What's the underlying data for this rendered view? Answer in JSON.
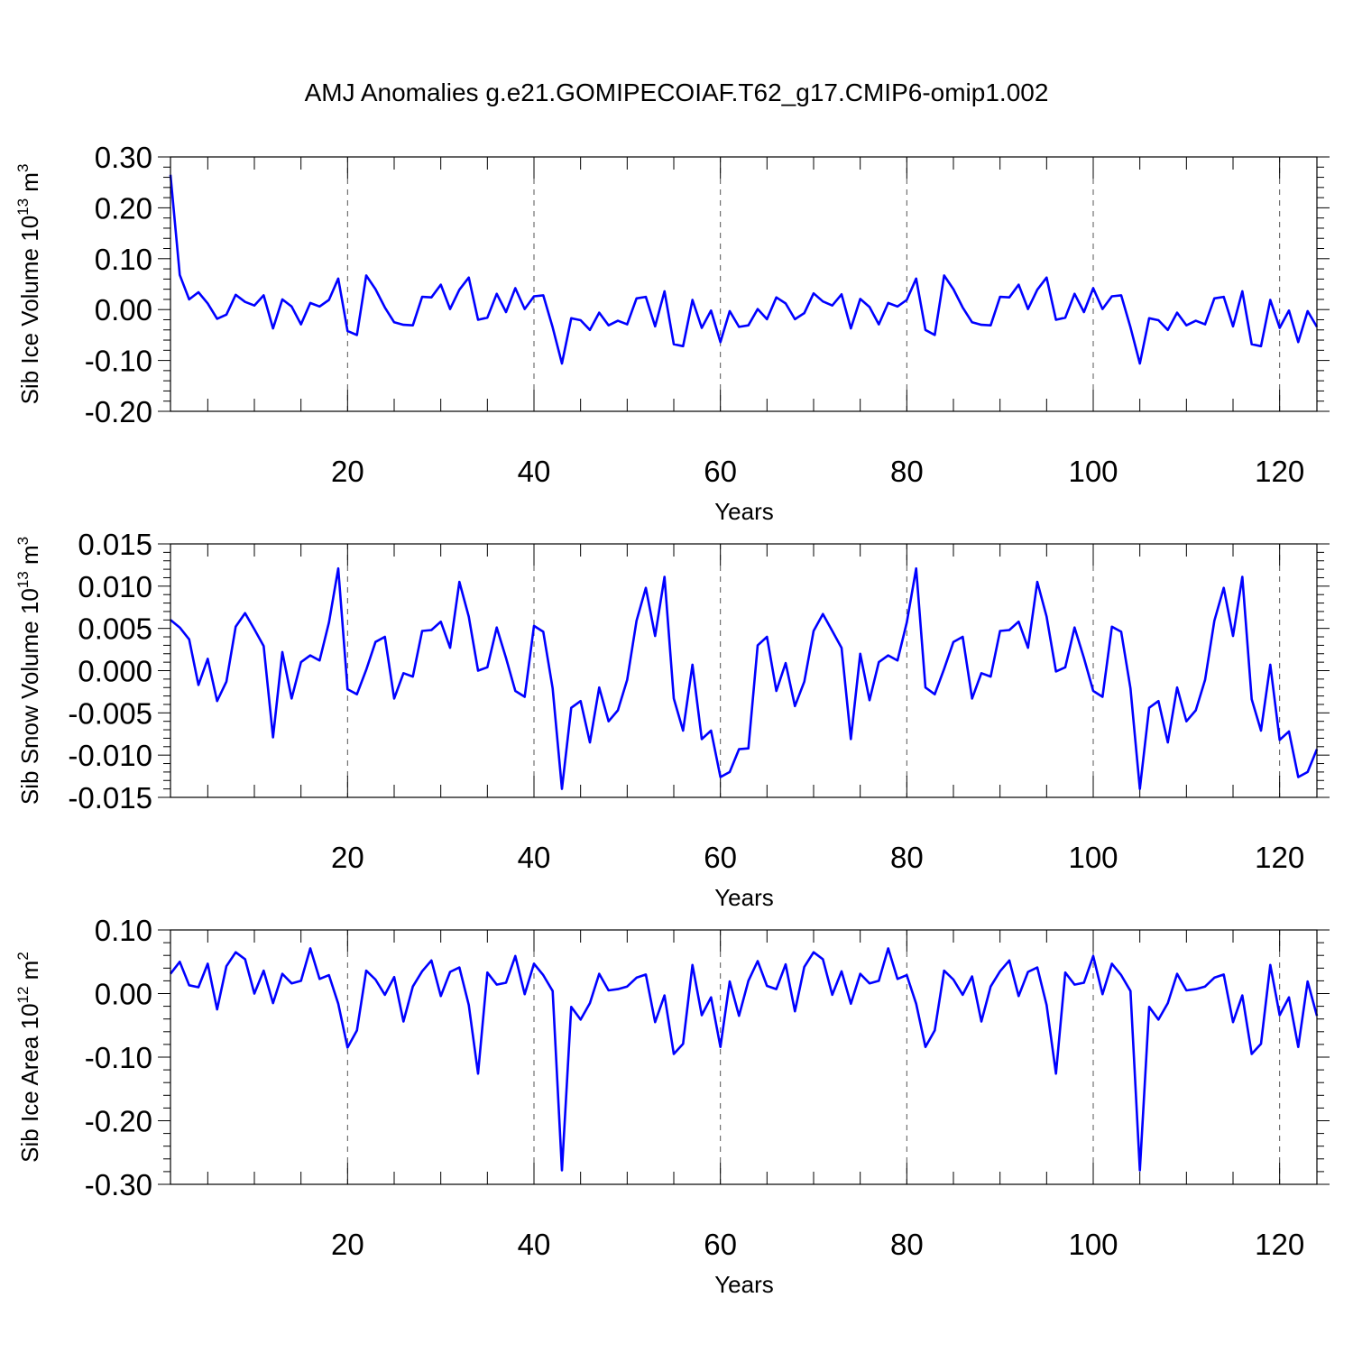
{
  "title": "AMJ Anomalies g.e21.GOMIPECOIAF.T62_g17.CMIP6-omip1.002",
  "chart_data": [
    {
      "type": "line",
      "title": "AMJ Anomalies g.e21.GOMIPECOIAF.T62_g17.CMIP6-omip1.002",
      "xlabel": "Years",
      "ylabel": "Sib Ice Volume 10",
      "ylabel_exp": "13",
      "ylabel_unit": "m",
      "ylabel_unit_exp": "3",
      "xlim": [
        1,
        124
      ],
      "ylim": [
        -0.2,
        0.3
      ],
      "xticks": [
        20,
        40,
        60,
        80,
        100,
        120
      ],
      "yticks": [
        -0.2,
        -0.1,
        0.0,
        0.1,
        0.2,
        0.3
      ],
      "ytick_labels": [
        "-0.20",
        "-0.10",
        "0.00",
        "0.10",
        "0.20",
        "0.30"
      ],
      "grid": "vertical dashed at major x ticks",
      "line_color": "#0000ff",
      "x_start": 1,
      "values": [
        0.265,
        0.068,
        0.02,
        0.034,
        0.012,
        -0.018,
        -0.01,
        0.029,
        0.015,
        0.008,
        0.028,
        -0.037,
        0.02,
        0.006,
        -0.029,
        0.013,
        0.006,
        0.019,
        0.061,
        -0.042,
        -0.05,
        0.067,
        0.04,
        0.004,
        -0.025,
        -0.03,
        -0.031,
        0.025,
        0.024,
        0.049,
        0.001,
        0.039,
        0.063,
        -0.02,
        -0.016,
        0.031,
        -0.005,
        0.042,
        0.001,
        0.026,
        0.028,
        -0.035,
        -0.106,
        -0.017,
        -0.021,
        -0.04,
        -0.006,
        -0.031,
        -0.022,
        -0.029,
        0.022,
        0.025,
        -0.033,
        0.036,
        -0.068,
        -0.072,
        0.019,
        -0.036,
        -0.002,
        -0.064,
        -0.003,
        -0.034,
        -0.031,
        0.001,
        -0.019,
        0.024,
        0.012,
        -0.019,
        -0.007,
        0.032,
        0.016,
        0.008,
        0.03,
        -0.037,
        0.021,
        0.005,
        -0.029,
        0.013,
        0.006,
        0.019,
        0.061,
        -0.04,
        -0.05,
        0.067,
        0.04,
        0.004,
        -0.025,
        -0.03,
        -0.031,
        0.025,
        0.024,
        0.049,
        0.001,
        0.039,
        0.063,
        -0.02,
        -0.016,
        0.031,
        -0.005,
        0.042,
        0.001,
        0.026,
        0.028,
        -0.035,
        -0.106,
        -0.017,
        -0.021,
        -0.04,
        -0.006,
        -0.031,
        -0.022,
        -0.029,
        0.022,
        0.025,
        -0.033,
        0.036,
        -0.068,
        -0.072,
        0.019,
        -0.036,
        -0.002,
        -0.064,
        -0.003,
        -0.034
      ]
    },
    {
      "type": "line",
      "xlabel": "Years",
      "ylabel": "Sib Snow Volume 10",
      "ylabel_exp": "13",
      "ylabel_unit": "m",
      "ylabel_unit_exp": "3",
      "xlim": [
        1,
        124
      ],
      "ylim": [
        -0.015,
        0.015
      ],
      "xticks": [
        20,
        40,
        60,
        80,
        100,
        120
      ],
      "yticks": [
        -0.015,
        -0.01,
        -0.005,
        0.0,
        0.005,
        0.01,
        0.015
      ],
      "ytick_labels": [
        "-0.015",
        "-0.010",
        "-0.005",
        "0.000",
        "0.005",
        "0.010",
        "0.015"
      ],
      "grid": "vertical dashed at major x ticks",
      "line_color": "#0000ff",
      "x_start": 1,
      "values": [
        0.006,
        0.0051,
        0.0037,
        -0.0017,
        0.0014,
        -0.0036,
        -0.0013,
        0.0052,
        0.0068,
        0.0049,
        0.0029,
        -0.0079,
        0.0022,
        -0.0033,
        0.001,
        0.0018,
        0.0012,
        0.0057,
        0.0121,
        -0.0022,
        -0.0028,
        0.0001,
        0.0034,
        0.004,
        -0.0033,
        -0.0003,
        -0.0007,
        0.0047,
        0.0048,
        0.0058,
        0.0027,
        0.0105,
        0.0064,
        0.0,
        0.0004,
        0.0051,
        0.0015,
        -0.0024,
        -0.0031,
        0.0053,
        0.0046,
        -0.0021,
        -0.014,
        -0.0044,
        -0.0036,
        -0.0085,
        -0.002,
        -0.006,
        -0.0047,
        -0.0011,
        0.0059,
        0.0098,
        0.0041,
        0.0111,
        -0.0033,
        -0.0071,
        0.0007,
        -0.0081,
        -0.0071,
        -0.0126,
        -0.012,
        -0.0093,
        -0.0092,
        0.003,
        0.004,
        -0.0024,
        0.0009,
        -0.0042,
        -0.0013,
        0.0047,
        0.0067,
        0.0047,
        0.0027,
        -0.0081,
        0.002,
        -0.0035,
        0.001,
        0.0018,
        0.0012,
        0.0057,
        0.0121,
        -0.002,
        -0.0028,
        0.0002,
        0.0034,
        0.004,
        -0.0033,
        -0.0003,
        -0.0007,
        0.0047,
        0.0048,
        0.0058,
        0.0027,
        0.0105,
        0.0064,
        -0.0001,
        0.0004,
        0.0051,
        0.0015,
        -0.0024,
        -0.0031,
        0.0052,
        0.0046,
        -0.0021,
        -0.014,
        -0.0044,
        -0.0036,
        -0.0085,
        -0.002,
        -0.006,
        -0.0047,
        -0.0011,
        0.0059,
        0.0098,
        0.0041,
        0.0111,
        -0.0034,
        -0.0071,
        0.0007,
        -0.0082,
        -0.0072,
        -0.0126,
        -0.012,
        -0.0093
      ]
    },
    {
      "type": "line",
      "xlabel": "Years",
      "ylabel": "Sib Ice Area 10",
      "ylabel_exp": "12",
      "ylabel_unit": "m",
      "ylabel_unit_exp": "2",
      "xlim": [
        1,
        124
      ],
      "ylim": [
        -0.3,
        0.1
      ],
      "xticks": [
        20,
        40,
        60,
        80,
        100,
        120
      ],
      "yticks": [
        -0.3,
        -0.2,
        -0.1,
        0.0,
        0.1
      ],
      "ytick_labels": [
        "-0.30",
        "-0.20",
        "-0.10",
        "0.00",
        "0.10"
      ],
      "grid": "vertical dashed at major x ticks",
      "line_color": "#0000ff",
      "x_start": 1,
      "values": [
        0.031,
        0.05,
        0.013,
        0.01,
        0.047,
        -0.025,
        0.043,
        0.065,
        0.054,
        0.0,
        0.036,
        -0.015,
        0.031,
        0.016,
        0.02,
        0.071,
        0.023,
        0.029,
        -0.016,
        -0.085,
        -0.058,
        0.036,
        0.022,
        -0.002,
        0.026,
        -0.044,
        0.011,
        0.035,
        0.052,
        -0.004,
        0.034,
        0.041,
        -0.018,
        -0.126,
        0.033,
        0.014,
        0.017,
        0.059,
        -0.001,
        0.047,
        0.029,
        0.004,
        -0.278,
        -0.021,
        -0.041,
        -0.015,
        0.031,
        0.005,
        0.007,
        0.011,
        0.025,
        0.03,
        -0.045,
        -0.003,
        -0.095,
        -0.079,
        0.045,
        -0.034,
        -0.006,
        -0.084,
        0.019,
        -0.035,
        0.02,
        0.051,
        0.012,
        0.007,
        0.046,
        -0.028,
        0.042,
        0.065,
        0.054,
        -0.002,
        0.035,
        -0.016,
        0.031,
        0.016,
        0.02,
        0.071,
        0.023,
        0.029,
        -0.016,
        -0.084,
        -0.058,
        0.036,
        0.022,
        -0.002,
        0.027,
        -0.044,
        0.011,
        0.035,
        0.052,
        -0.004,
        0.034,
        0.041,
        -0.018,
        -0.126,
        0.033,
        0.014,
        0.017,
        0.059,
        -0.001,
        0.047,
        0.029,
        0.004,
        -0.278,
        -0.021,
        -0.041,
        -0.015,
        0.031,
        0.005,
        0.007,
        0.011,
        0.025,
        0.03,
        -0.045,
        -0.003,
        -0.095,
        -0.079,
        0.045,
        -0.034,
        -0.006,
        -0.084,
        0.019,
        -0.035
      ]
    }
  ]
}
